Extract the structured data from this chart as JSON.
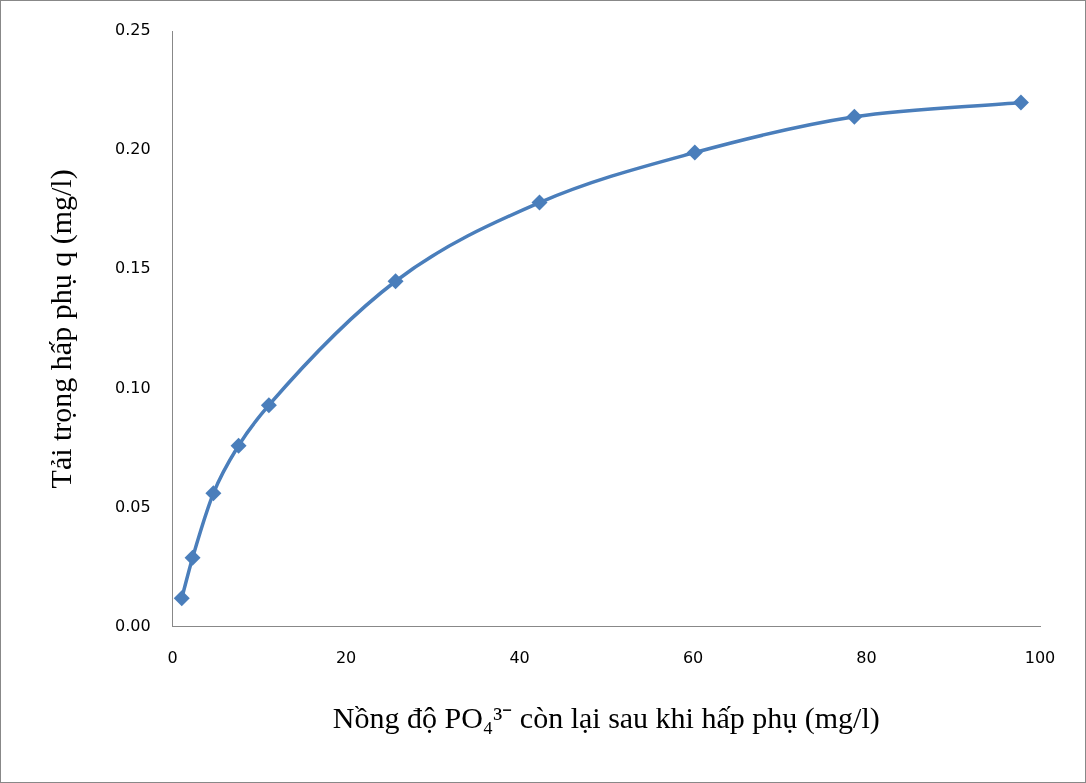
{
  "chart_data": {
    "type": "line",
    "xlabel": "Nồng độ PO₄³⁻ còn lại sau khi hấp phụ (mg/l)",
    "ylabel": "Tải trọng hấp phụ q (mg/l)",
    "x": [
      1.05,
      2.3,
      4.7,
      7.6,
      11.1,
      25.7,
      42.3,
      60.2,
      78.6,
      97.8
    ],
    "series": [
      {
        "color": "#4a7ebb",
        "values": [
          0.012,
          0.029,
          0.056,
          0.076,
          0.093,
          0.145,
          0.178,
          0.199,
          0.214,
          0.22
        ]
      }
    ],
    "xlim": [
      0,
      100
    ],
    "xticks": [
      0,
      20,
      40,
      60,
      80,
      100
    ],
    "ylim": [
      0,
      0.25
    ],
    "yticks": [
      {
        "value": 0,
        "label": "0.00"
      },
      {
        "value": 0.05,
        "label": "0.05"
      },
      {
        "value": 0.1,
        "label": "0.10"
      },
      {
        "value": 0.15,
        "label": "0.15"
      },
      {
        "value": 0.2,
        "label": "0.20"
      },
      {
        "value": 0.25,
        "label": "0.25"
      }
    ],
    "grid": false,
    "legend": false,
    "marker": "diamond",
    "line_style": "solid"
  }
}
